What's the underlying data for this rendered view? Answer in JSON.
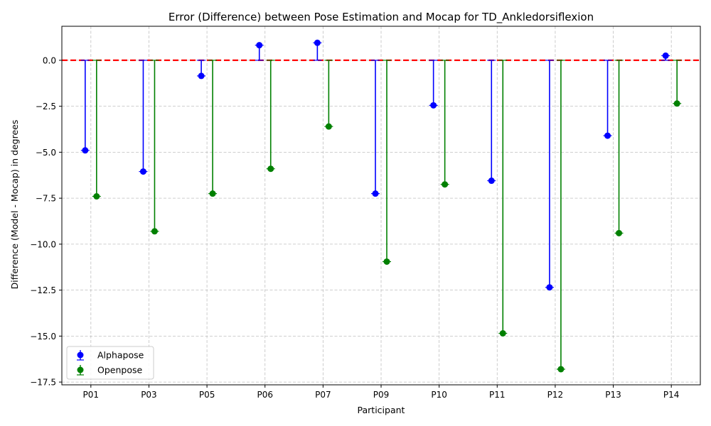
{
  "chart_data": {
    "type": "scatter",
    "title": "Error (Difference) between Pose Estimation and Mocap for TD_Ankledorsiflexion",
    "xlabel": "Participant",
    "ylabel": "Difference (Model - Mocap) in degrees",
    "categories": [
      "P01",
      "P03",
      "P05",
      "P06",
      "P07",
      "P09",
      "P10",
      "P11",
      "P12",
      "P13",
      "P14"
    ],
    "series": [
      {
        "name": "Alphapose",
        "color": "#0000ff",
        "values": [
          -4.9,
          -6.05,
          -0.85,
          0.82,
          0.95,
          -7.25,
          -2.45,
          -6.55,
          -12.35,
          -4.1,
          0.25
        ]
      },
      {
        "name": "Openpose",
        "color": "#008000",
        "values": [
          -7.4,
          -9.3,
          -7.25,
          -5.9,
          -3.6,
          -10.95,
          -6.75,
          -14.85,
          -16.8,
          -9.4,
          -2.35
        ]
      }
    ],
    "reference_line": {
      "y": 0,
      "color": "#ff0000",
      "style": "dashed"
    },
    "yticks": [
      0.0,
      -2.5,
      -5.0,
      -7.5,
      -10.0,
      -12.5,
      -15.0,
      -17.5
    ],
    "ytick_labels": [
      "0.0",
      "−2.5",
      "−5.0",
      "−7.5",
      "−10.0",
      "−12.5",
      "−15.0",
      "−17.5"
    ],
    "ylim": [
      -17.65,
      1.85
    ],
    "grid": true,
    "legend_position": "bottom-left"
  }
}
